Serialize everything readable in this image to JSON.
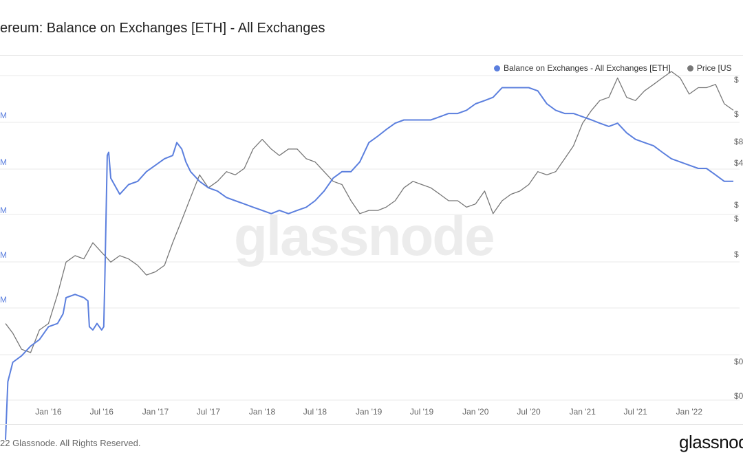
{
  "header": {
    "title": "ereum: Balance on Exchanges [ETH] - All Exchanges"
  },
  "footer": {
    "copyright": "22 Glassnode. All Rights Reserved.",
    "brand": "glassnode"
  },
  "watermark": "glassnode",
  "colors": {
    "balance": "#5b7fde",
    "price": "#777777",
    "grid": "#e8e8e8",
    "axis_text": "#666666"
  },
  "chart_data": {
    "type": "line",
    "title": "ereum: Balance on Exchanges [ETH] - All Exchanges",
    "x_tick_labels": [
      "Jan '16",
      "Jul '16",
      "Jan '17",
      "Jul '17",
      "Jan '18",
      "Jul '18",
      "Jan '19",
      "Jul '19",
      "Jan '20",
      "Jul '20",
      "Jan '21",
      "Jul '21",
      "Jan '22"
    ],
    "x_range": [
      "2015-08-07",
      "2022-06-01"
    ],
    "left_axis_labels": [
      "M",
      "M",
      "M",
      "M",
      "M"
    ],
    "right_axis_labels": [
      "$",
      "$",
      "$8",
      "$4",
      "$",
      "$",
      "$",
      "$0",
      "$0"
    ],
    "legend": {
      "placement": "top-right"
    },
    "grid": true,
    "series": [
      {
        "name": "Balance on Exchanges - All Exchanges [ETH]",
        "axis": "left",
        "points": [
          [
            "2015-08-07",
            0.06
          ],
          [
            "2015-08-15",
            0.24
          ],
          [
            "2015-09-01",
            0.3
          ],
          [
            "2015-10-01",
            0.32
          ],
          [
            "2015-11-01",
            0.35
          ],
          [
            "2015-12-01",
            0.37
          ],
          [
            "2016-01-01",
            0.41
          ],
          [
            "2016-02-01",
            0.42
          ],
          [
            "2016-02-20",
            0.45
          ],
          [
            "2016-03-01",
            0.5
          ],
          [
            "2016-04-01",
            0.51
          ],
          [
            "2016-05-01",
            0.5
          ],
          [
            "2016-05-15",
            0.49
          ],
          [
            "2016-05-20",
            0.41
          ],
          [
            "2016-06-01",
            0.4
          ],
          [
            "2016-06-15",
            0.42
          ],
          [
            "2016-07-01",
            0.4
          ],
          [
            "2016-07-08",
            0.41
          ],
          [
            "2016-07-12",
            0.57
          ],
          [
            "2016-07-20",
            0.94
          ],
          [
            "2016-07-25",
            0.95
          ],
          [
            "2016-08-01",
            0.87
          ],
          [
            "2016-09-01",
            0.82
          ],
          [
            "2016-10-01",
            0.85
          ],
          [
            "2016-11-01",
            0.86
          ],
          [
            "2016-12-01",
            0.89
          ],
          [
            "2017-01-01",
            0.91
          ],
          [
            "2017-02-01",
            0.93
          ],
          [
            "2017-03-01",
            0.94
          ],
          [
            "2017-03-15",
            0.98
          ],
          [
            "2017-04-01",
            0.96
          ],
          [
            "2017-04-15",
            0.92
          ],
          [
            "2017-05-01",
            0.89
          ],
          [
            "2017-06-01",
            0.86
          ],
          [
            "2017-07-01",
            0.84
          ],
          [
            "2017-08-01",
            0.83
          ],
          [
            "2017-09-01",
            0.81
          ],
          [
            "2017-10-01",
            0.8
          ],
          [
            "2017-11-01",
            0.79
          ],
          [
            "2017-12-01",
            0.78
          ],
          [
            "2018-01-01",
            0.77
          ],
          [
            "2018-02-01",
            0.76
          ],
          [
            "2018-03-01",
            0.77
          ],
          [
            "2018-04-01",
            0.76
          ],
          [
            "2018-05-01",
            0.77
          ],
          [
            "2018-06-01",
            0.78
          ],
          [
            "2018-07-01",
            0.8
          ],
          [
            "2018-08-01",
            0.83
          ],
          [
            "2018-09-01",
            0.87
          ],
          [
            "2018-10-01",
            0.89
          ],
          [
            "2018-11-01",
            0.89
          ],
          [
            "2018-12-01",
            0.92
          ],
          [
            "2019-01-01",
            0.98
          ],
          [
            "2019-02-01",
            1.0
          ],
          [
            "2019-03-01",
            1.02
          ],
          [
            "2019-04-01",
            1.04
          ],
          [
            "2019-05-01",
            1.05
          ],
          [
            "2019-06-01",
            1.05
          ],
          [
            "2019-07-01",
            1.05
          ],
          [
            "2019-08-01",
            1.05
          ],
          [
            "2019-09-01",
            1.06
          ],
          [
            "2019-10-01",
            1.07
          ],
          [
            "2019-11-01",
            1.07
          ],
          [
            "2019-12-01",
            1.08
          ],
          [
            "2020-01-01",
            1.1
          ],
          [
            "2020-02-01",
            1.11
          ],
          [
            "2020-03-01",
            1.12
          ],
          [
            "2020-04-01",
            1.15
          ],
          [
            "2020-05-01",
            1.15
          ],
          [
            "2020-06-01",
            1.15
          ],
          [
            "2020-07-01",
            1.15
          ],
          [
            "2020-08-01",
            1.14
          ],
          [
            "2020-09-01",
            1.1
          ],
          [
            "2020-10-01",
            1.08
          ],
          [
            "2020-11-01",
            1.07
          ],
          [
            "2020-12-01",
            1.07
          ],
          [
            "2021-01-01",
            1.06
          ],
          [
            "2021-02-01",
            1.05
          ],
          [
            "2021-03-01",
            1.04
          ],
          [
            "2021-04-01",
            1.03
          ],
          [
            "2021-05-01",
            1.04
          ],
          [
            "2021-06-01",
            1.01
          ],
          [
            "2021-07-01",
            0.99
          ],
          [
            "2021-08-01",
            0.98
          ],
          [
            "2021-09-01",
            0.97
          ],
          [
            "2021-10-01",
            0.95
          ],
          [
            "2021-11-01",
            0.93
          ],
          [
            "2021-12-01",
            0.92
          ],
          [
            "2022-01-01",
            0.91
          ],
          [
            "2022-02-01",
            0.9
          ],
          [
            "2022-03-01",
            0.9
          ],
          [
            "2022-04-01",
            0.88
          ],
          [
            "2022-05-01",
            0.86
          ],
          [
            "2022-06-01",
            0.86
          ]
        ]
      },
      {
        "name": "Price [US",
        "axis": "right",
        "points": [
          [
            "2015-08-07",
            0.42
          ],
          [
            "2015-09-01",
            0.39
          ],
          [
            "2015-10-01",
            0.34
          ],
          [
            "2015-11-01",
            0.33
          ],
          [
            "2015-12-01",
            0.4
          ],
          [
            "2016-01-01",
            0.42
          ],
          [
            "2016-02-01",
            0.51
          ],
          [
            "2016-03-01",
            0.61
          ],
          [
            "2016-04-01",
            0.63
          ],
          [
            "2016-05-01",
            0.62
          ],
          [
            "2016-06-01",
            0.67
          ],
          [
            "2016-07-01",
            0.64
          ],
          [
            "2016-08-01",
            0.61
          ],
          [
            "2016-09-01",
            0.63
          ],
          [
            "2016-10-01",
            0.62
          ],
          [
            "2016-11-01",
            0.6
          ],
          [
            "2016-12-01",
            0.57
          ],
          [
            "2017-01-01",
            0.58
          ],
          [
            "2017-02-01",
            0.6
          ],
          [
            "2017-03-01",
            0.67
          ],
          [
            "2017-04-01",
            0.74
          ],
          [
            "2017-05-01",
            0.81
          ],
          [
            "2017-06-01",
            0.88
          ],
          [
            "2017-07-01",
            0.84
          ],
          [
            "2017-08-01",
            0.86
          ],
          [
            "2017-09-01",
            0.89
          ],
          [
            "2017-10-01",
            0.88
          ],
          [
            "2017-11-01",
            0.9
          ],
          [
            "2017-12-01",
            0.96
          ],
          [
            "2018-01-01",
            0.99
          ],
          [
            "2018-02-01",
            0.96
          ],
          [
            "2018-03-01",
            0.94
          ],
          [
            "2018-04-01",
            0.96
          ],
          [
            "2018-05-01",
            0.96
          ],
          [
            "2018-06-01",
            0.93
          ],
          [
            "2018-07-01",
            0.92
          ],
          [
            "2018-08-01",
            0.89
          ],
          [
            "2018-09-01",
            0.86
          ],
          [
            "2018-10-01",
            0.85
          ],
          [
            "2018-11-01",
            0.8
          ],
          [
            "2018-12-01",
            0.76
          ],
          [
            "2019-01-01",
            0.77
          ],
          [
            "2019-02-01",
            0.77
          ],
          [
            "2019-03-01",
            0.78
          ],
          [
            "2019-04-01",
            0.8
          ],
          [
            "2019-05-01",
            0.84
          ],
          [
            "2019-06-01",
            0.86
          ],
          [
            "2019-07-01",
            0.85
          ],
          [
            "2019-08-01",
            0.84
          ],
          [
            "2019-09-01",
            0.82
          ],
          [
            "2019-10-01",
            0.8
          ],
          [
            "2019-11-01",
            0.8
          ],
          [
            "2019-12-01",
            0.78
          ],
          [
            "2020-01-01",
            0.79
          ],
          [
            "2020-02-01",
            0.83
          ],
          [
            "2020-03-01",
            0.76
          ],
          [
            "2020-04-01",
            0.8
          ],
          [
            "2020-05-01",
            0.82
          ],
          [
            "2020-06-01",
            0.83
          ],
          [
            "2020-07-01",
            0.85
          ],
          [
            "2020-08-01",
            0.89
          ],
          [
            "2020-09-01",
            0.88
          ],
          [
            "2020-10-01",
            0.89
          ],
          [
            "2020-11-01",
            0.93
          ],
          [
            "2020-12-01",
            0.97
          ],
          [
            "2021-01-01",
            1.04
          ],
          [
            "2021-02-01",
            1.08
          ],
          [
            "2021-03-01",
            1.11
          ],
          [
            "2021-04-01",
            1.12
          ],
          [
            "2021-05-01",
            1.18
          ],
          [
            "2021-06-01",
            1.12
          ],
          [
            "2021-07-01",
            1.11
          ],
          [
            "2021-08-01",
            1.14
          ],
          [
            "2021-09-01",
            1.16
          ],
          [
            "2021-10-01",
            1.18
          ],
          [
            "2021-11-01",
            1.2
          ],
          [
            "2021-12-01",
            1.18
          ],
          [
            "2022-01-01",
            1.13
          ],
          [
            "2022-02-01",
            1.15
          ],
          [
            "2022-03-01",
            1.15
          ],
          [
            "2022-04-01",
            1.16
          ],
          [
            "2022-05-01",
            1.1
          ],
          [
            "2022-06-01",
            1.08
          ]
        ]
      }
    ]
  }
}
